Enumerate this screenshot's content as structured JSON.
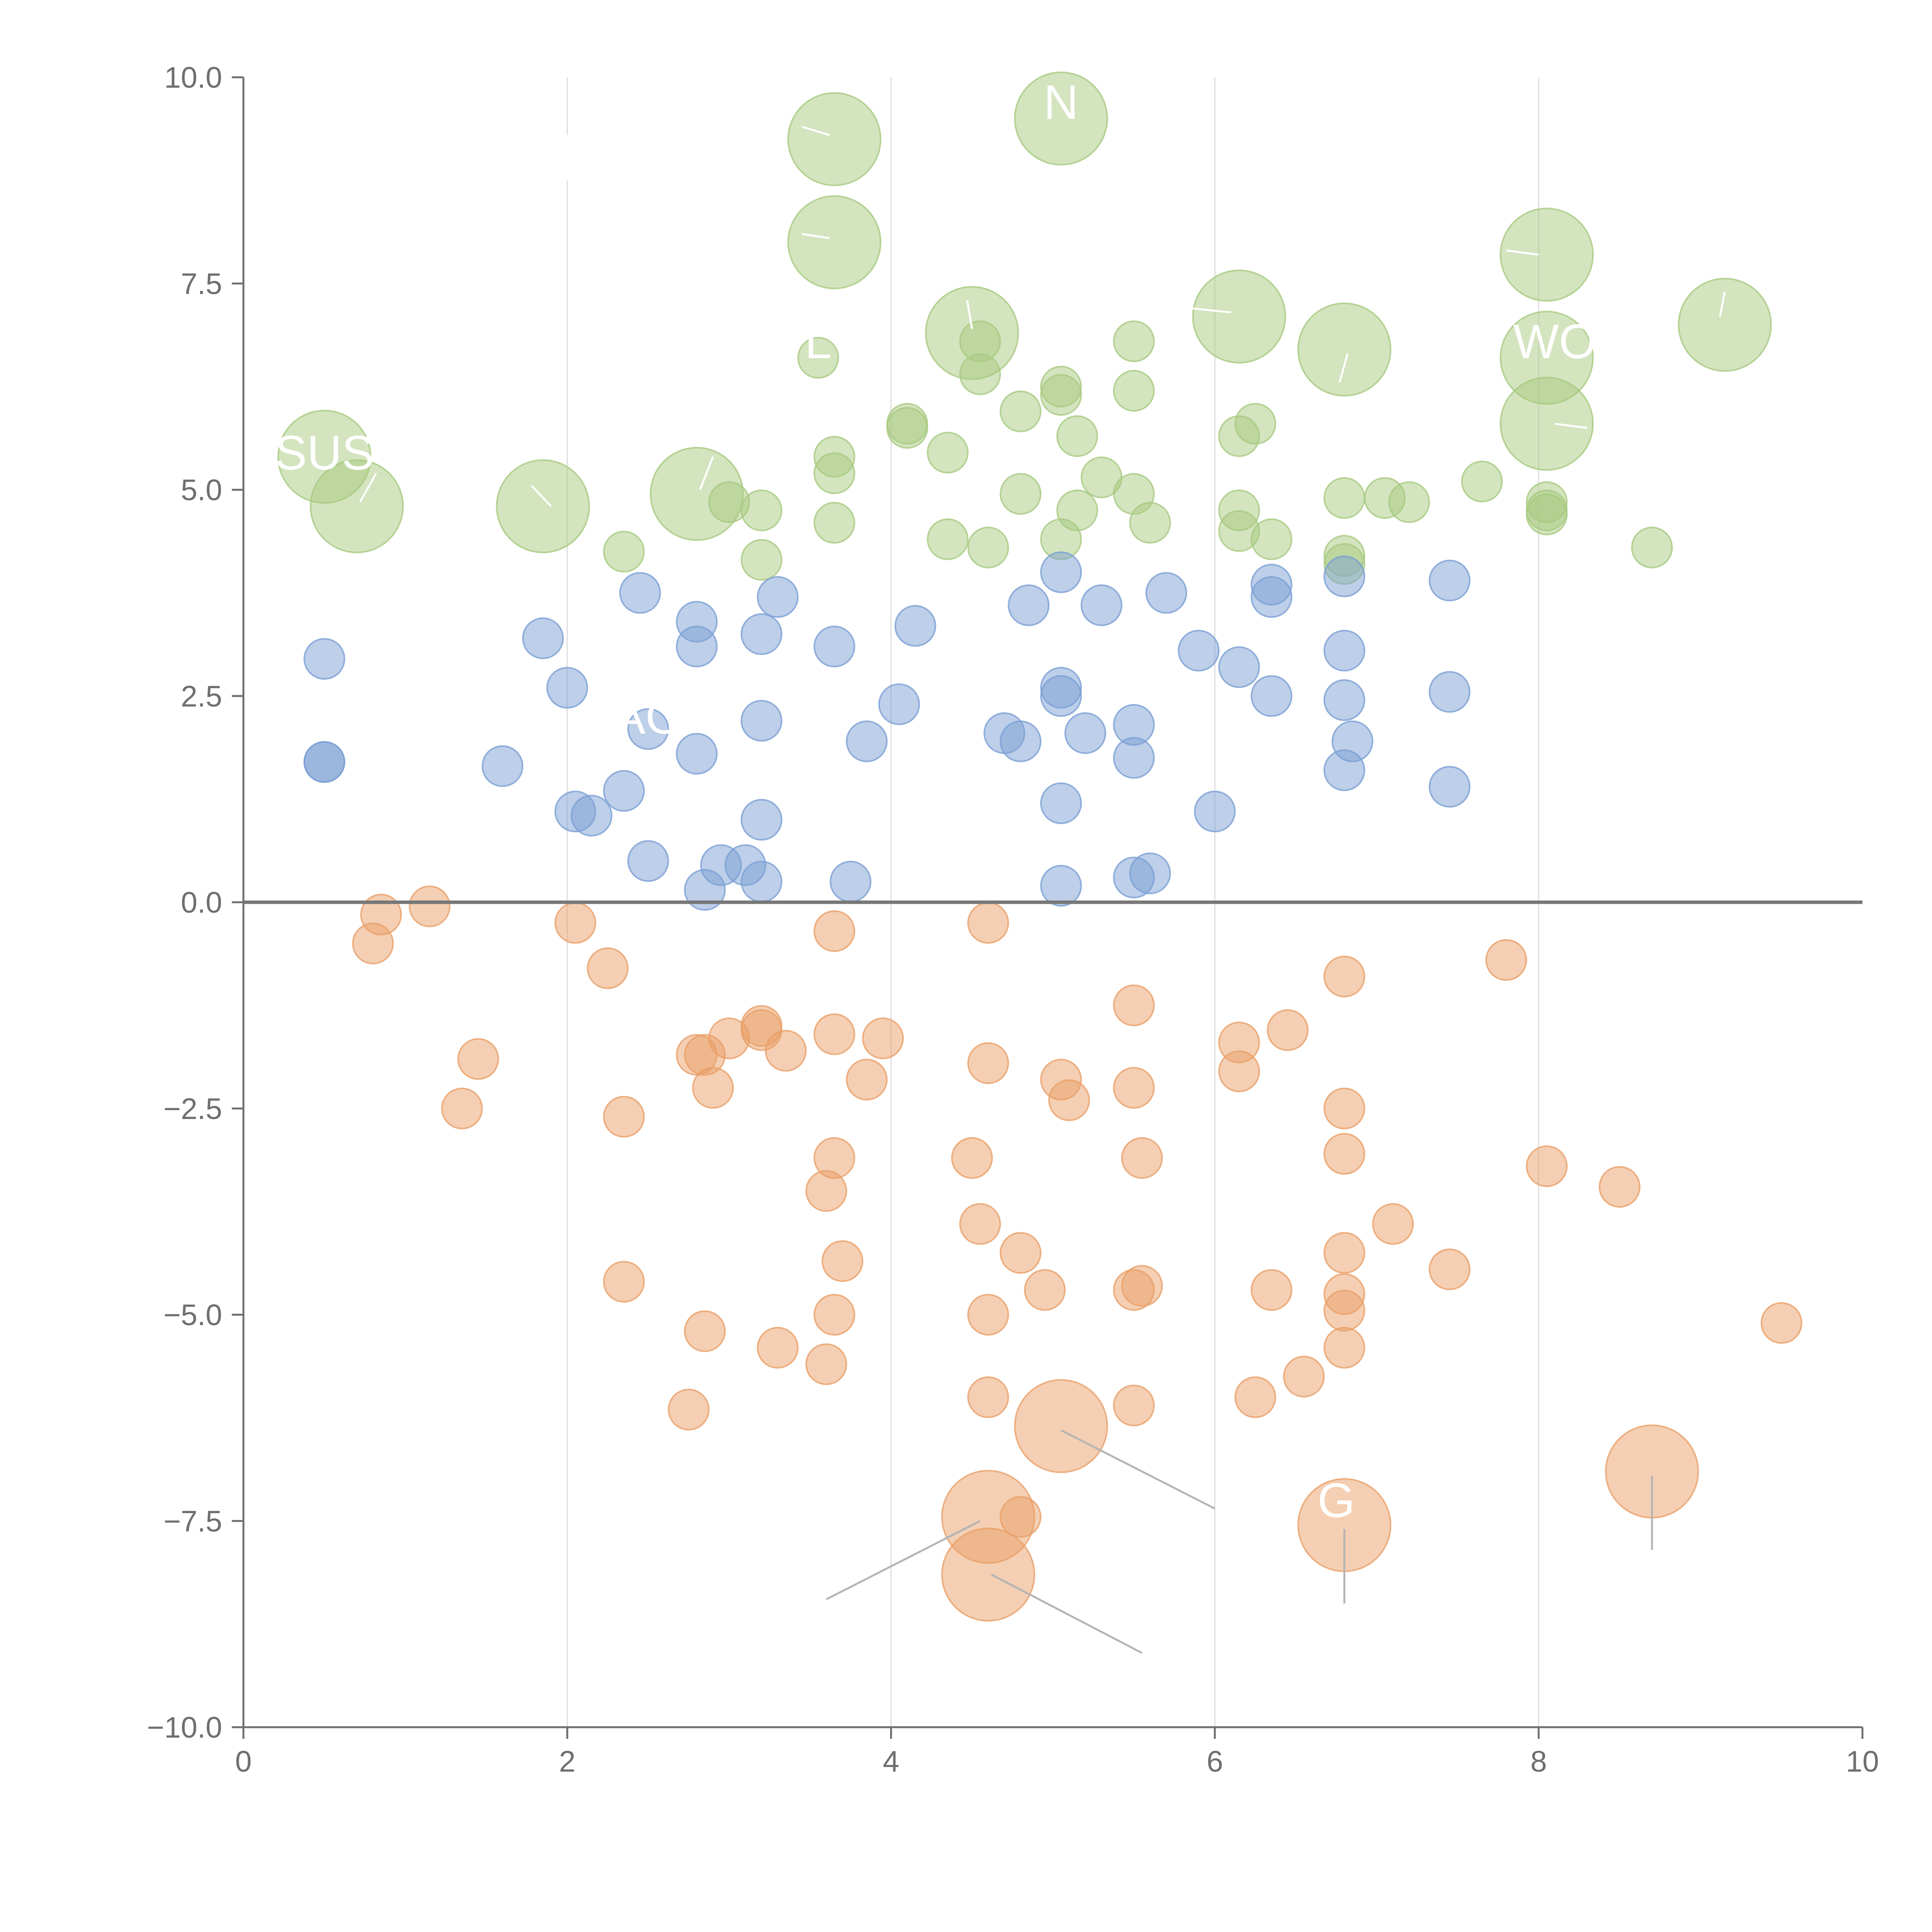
{
  "chart_data": {
    "type": "scatter",
    "title": "",
    "xlabel": "",
    "ylabel": "",
    "xlim": [
      0,
      10
    ],
    "ylim": [
      -10,
      10
    ],
    "x_ticks": [
      0,
      2,
      4,
      6,
      8,
      10
    ],
    "x_tick_labels": [
      "0",
      "2",
      "4",
      "6",
      "8",
      "10"
    ],
    "y_ticks": [
      10,
      7.5,
      5,
      2.5,
      0,
      -2.5,
      -5,
      -7.5,
      -10
    ],
    "y_tick_labels": [
      "10.0",
      "7.5",
      "5.0",
      "2.5",
      "0.0",
      "−2.5",
      "−5.0",
      "−7.5",
      "−10.0"
    ],
    "grid": "vertical",
    "reference_line_y": 0,
    "colors": {
      "top": "#a8c97f",
      "middle": "#7b9fd4",
      "bottom": "#ea9f68",
      "top_leader": "#ffffff",
      "bottom_leader": "#b4b4b4",
      "label": "#ffffff"
    },
    "size_units": {
      "small": 1,
      "large": 2.3
    },
    "series": [
      {
        "name": "top",
        "color_key": "top",
        "points": [
          [
            0.5,
            5.4,
            2.3
          ],
          [
            0.7,
            4.8,
            2.3
          ],
          [
            1.85,
            4.8,
            2.3
          ],
          [
            2.8,
            4.95,
            2.3
          ],
          [
            3.65,
            9.25,
            2.3
          ],
          [
            3.65,
            8.0,
            2.3
          ],
          [
            4.5,
            6.9,
            2.3
          ],
          [
            5.05,
            9.5,
            2.3
          ],
          [
            6.15,
            7.1,
            2.3
          ],
          [
            6.8,
            6.7,
            2.3
          ],
          [
            8.05,
            7.85,
            2.3
          ],
          [
            8.05,
            6.6,
            2.3
          ],
          [
            8.05,
            5.8,
            2.3
          ],
          [
            9.15,
            7.0,
            2.3
          ],
          [
            2.35,
            4.25,
            1
          ],
          [
            3.0,
            4.85,
            1
          ],
          [
            3.2,
            4.75,
            1
          ],
          [
            3.2,
            4.15,
            1
          ],
          [
            3.55,
            6.6,
            1
          ],
          [
            3.65,
            5.4,
            1
          ],
          [
            3.65,
            5.2,
            1
          ],
          [
            3.65,
            4.6,
            1
          ],
          [
            4.1,
            5.8,
            1
          ],
          [
            4.1,
            5.75,
            1
          ],
          [
            4.35,
            5.45,
            1
          ],
          [
            4.35,
            4.4,
            1
          ],
          [
            4.55,
            6.8,
            1
          ],
          [
            4.55,
            6.4,
            1
          ],
          [
            4.6,
            4.3,
            1
          ],
          [
            4.8,
            5.95,
            1
          ],
          [
            4.8,
            4.95,
            1
          ],
          [
            5.05,
            6.25,
            1
          ],
          [
            5.05,
            6.15,
            1
          ],
          [
            5.05,
            4.4,
            1
          ],
          [
            5.15,
            5.65,
            1
          ],
          [
            5.15,
            4.75,
            1
          ],
          [
            5.3,
            5.15,
            1
          ],
          [
            5.5,
            6.8,
            1
          ],
          [
            5.5,
            6.2,
            1
          ],
          [
            5.5,
            4.95,
            1
          ],
          [
            5.6,
            4.6,
            1
          ],
          [
            6.15,
            5.65,
            1
          ],
          [
            6.15,
            4.75,
            1
          ],
          [
            6.15,
            4.5,
            1
          ],
          [
            6.25,
            5.8,
            1
          ],
          [
            6.35,
            4.4,
            1
          ],
          [
            6.8,
            4.9,
            1
          ],
          [
            6.8,
            4.2,
            1
          ],
          [
            6.8,
            4.1,
            1
          ],
          [
            7.05,
            4.9,
            1
          ],
          [
            7.2,
            4.85,
            1
          ],
          [
            7.65,
            5.1,
            1
          ],
          [
            8.05,
            4.85,
            1
          ],
          [
            8.05,
            4.75,
            1
          ],
          [
            8.05,
            4.7,
            1
          ],
          [
            8.7,
            4.3,
            1
          ]
        ]
      },
      {
        "name": "middle",
        "color_key": "middle",
        "points": [
          [
            0.5,
            2.95,
            1
          ],
          [
            0.5,
            1.7,
            1
          ],
          [
            0.5,
            1.7,
            1
          ],
          [
            1.6,
            1.65,
            1
          ],
          [
            1.85,
            3.2,
            1
          ],
          [
            2.0,
            2.6,
            1
          ],
          [
            2.05,
            1.1,
            1
          ],
          [
            2.15,
            1.05,
            1
          ],
          [
            2.35,
            1.35,
            1
          ],
          [
            2.45,
            3.75,
            1
          ],
          [
            2.5,
            2.1,
            1
          ],
          [
            2.5,
            0.5,
            1
          ],
          [
            2.8,
            3.4,
            1
          ],
          [
            2.8,
            3.1,
            1
          ],
          [
            2.8,
            1.8,
            1
          ],
          [
            2.85,
            0.15,
            1
          ],
          [
            2.95,
            0.45,
            1
          ],
          [
            3.1,
            0.45,
            1
          ],
          [
            3.2,
            3.25,
            1
          ],
          [
            3.2,
            2.2,
            1
          ],
          [
            3.2,
            1.0,
            1
          ],
          [
            3.2,
            0.25,
            1
          ],
          [
            3.3,
            3.7,
            1
          ],
          [
            3.65,
            3.1,
            1
          ],
          [
            3.75,
            0.25,
            1
          ],
          [
            3.85,
            1.95,
            1
          ],
          [
            4.05,
            2.4,
            1
          ],
          [
            4.15,
            3.35,
            1
          ],
          [
            4.7,
            2.05,
            1
          ],
          [
            4.8,
            1.95,
            1
          ],
          [
            4.85,
            3.6,
            1
          ],
          [
            5.05,
            4.0,
            1
          ],
          [
            5.05,
            2.6,
            1
          ],
          [
            5.05,
            2.5,
            1
          ],
          [
            5.05,
            1.2,
            1
          ],
          [
            5.05,
            0.2,
            1
          ],
          [
            5.2,
            2.05,
            1
          ],
          [
            5.3,
            3.6,
            1
          ],
          [
            5.5,
            2.15,
            1
          ],
          [
            5.5,
            1.75,
            1
          ],
          [
            5.5,
            0.3,
            1
          ],
          [
            5.6,
            0.35,
            1
          ],
          [
            5.7,
            3.75,
            1
          ],
          [
            5.9,
            3.05,
            1
          ],
          [
            6.0,
            1.1,
            1
          ],
          [
            6.15,
            2.85,
            1
          ],
          [
            6.35,
            3.85,
            1
          ],
          [
            6.35,
            3.7,
            1
          ],
          [
            6.35,
            2.5,
            1
          ],
          [
            6.8,
            3.95,
            1
          ],
          [
            6.8,
            3.05,
            1
          ],
          [
            6.8,
            2.45,
            1
          ],
          [
            6.8,
            1.6,
            1
          ],
          [
            6.85,
            1.95,
            1
          ],
          [
            7.45,
            3.9,
            1
          ],
          [
            7.45,
            2.55,
            1
          ],
          [
            7.45,
            1.4,
            1
          ]
        ]
      },
      {
        "name": "bottom",
        "color_key": "bottom",
        "points": [
          [
            0.8,
            -0.5,
            1
          ],
          [
            0.85,
            -0.15,
            1
          ],
          [
            1.15,
            -0.05,
            1
          ],
          [
            1.35,
            -2.5,
            1
          ],
          [
            1.45,
            -1.9,
            1
          ],
          [
            2.05,
            -0.25,
            1
          ],
          [
            2.25,
            -0.8,
            1
          ],
          [
            2.35,
            -2.6,
            1
          ],
          [
            2.35,
            -4.6,
            1
          ],
          [
            2.75,
            -6.15,
            1
          ],
          [
            2.8,
            -1.85,
            1
          ],
          [
            2.85,
            -1.85,
            1
          ],
          [
            2.85,
            -5.2,
            1
          ],
          [
            2.9,
            -2.25,
            1
          ],
          [
            3.0,
            -1.65,
            1
          ],
          [
            3.2,
            -1.55,
            1
          ],
          [
            3.2,
            -1.5,
            1
          ],
          [
            3.3,
            -5.4,
            1
          ],
          [
            3.35,
            -1.8,
            1
          ],
          [
            3.6,
            -3.5,
            1
          ],
          [
            3.6,
            -5.6,
            1
          ],
          [
            3.65,
            -0.35,
            1
          ],
          [
            3.65,
            -1.6,
            1
          ],
          [
            3.65,
            -3.1,
            1
          ],
          [
            3.65,
            -5.0,
            1
          ],
          [
            3.7,
            -4.35,
            1
          ],
          [
            3.85,
            -2.15,
            1
          ],
          [
            3.95,
            -1.65,
            1
          ],
          [
            4.5,
            -3.1,
            1
          ],
          [
            4.55,
            -3.9,
            1
          ],
          [
            4.6,
            -0.25,
            1
          ],
          [
            4.6,
            -1.95,
            1
          ],
          [
            4.6,
            -5.0,
            1
          ],
          [
            4.6,
            -6.0,
            1
          ],
          [
            4.8,
            -4.25,
            1
          ],
          [
            4.8,
            -7.45,
            1
          ],
          [
            4.95,
            -4.7,
            1
          ],
          [
            5.05,
            -2.15,
            1
          ],
          [
            5.1,
            -2.4,
            1
          ],
          [
            5.5,
            -1.25,
            1
          ],
          [
            5.5,
            -2.25,
            1
          ],
          [
            5.5,
            -4.7,
            1
          ],
          [
            5.5,
            -6.1,
            1
          ],
          [
            5.55,
            -4.65,
            1
          ],
          [
            5.55,
            -3.1,
            1
          ],
          [
            6.15,
            -1.7,
            1
          ],
          [
            6.15,
            -2.05,
            1
          ],
          [
            6.25,
            -6.0,
            1
          ],
          [
            6.35,
            -4.7,
            1
          ],
          [
            6.45,
            -1.55,
            1
          ],
          [
            6.55,
            -5.75,
            1
          ],
          [
            6.8,
            -0.9,
            1
          ],
          [
            6.8,
            -2.5,
            1
          ],
          [
            6.8,
            -3.05,
            1
          ],
          [
            6.8,
            -4.25,
            1
          ],
          [
            6.8,
            -4.75,
            1
          ],
          [
            6.8,
            -4.95,
            1
          ],
          [
            6.8,
            -5.4,
            1
          ],
          [
            7.1,
            -3.9,
            1
          ],
          [
            7.45,
            -4.45,
            1
          ],
          [
            7.8,
            -0.7,
            1
          ],
          [
            8.05,
            -3.2,
            1
          ],
          [
            8.5,
            -3.45,
            1
          ],
          [
            9.5,
            -5.1,
            1
          ],
          [
            5.05,
            -6.35,
            2.3
          ],
          [
            4.6,
            -7.45,
            2.3
          ],
          [
            4.6,
            -8.15,
            2.3
          ],
          [
            6.8,
            -7.55,
            2.3
          ],
          [
            8.7,
            -6.9,
            2.3
          ]
        ]
      }
    ],
    "labels": [
      {
        "text": "SUS",
        "x": 0.5,
        "y": 5.4
      },
      {
        "text": "WO",
        "x": 8.1,
        "y": 6.75
      },
      {
        "text": "N",
        "x": 5.05,
        "y": 9.65
      },
      {
        "text": "L",
        "x": 3.55,
        "y": 6.75
      },
      {
        "text": "AO",
        "x": 2.5,
        "y": 2.2
      },
      {
        "text": "G",
        "x": 6.75,
        "y": -7.3
      }
    ],
    "leader_lines": [
      {
        "group": "top",
        "x1": 0.72,
        "y1": 4.85,
        "x2": 0.82,
        "y2": 5.2
      },
      {
        "group": "top",
        "x1": 1.9,
        "y1": 4.8,
        "x2": 1.78,
        "y2": 5.05
      },
      {
        "group": "top",
        "x1": 2.82,
        "y1": 5.0,
        "x2": 2.9,
        "y2": 5.4
      },
      {
        "group": "top",
        "x1": 3.62,
        "y1": 9.3,
        "x2": 3.45,
        "y2": 9.4
      },
      {
        "group": "top",
        "x1": 3.62,
        "y1": 8.05,
        "x2": 3.45,
        "y2": 8.1
      },
      {
        "group": "top",
        "x1": 4.5,
        "y1": 6.95,
        "x2": 4.47,
        "y2": 7.3
      },
      {
        "group": "top",
        "x1": 6.1,
        "y1": 7.15,
        "x2": 5.85,
        "y2": 7.2
      },
      {
        "group": "top",
        "x1": 6.82,
        "y1": 6.65,
        "x2": 6.77,
        "y2": 6.3
      },
      {
        "group": "top",
        "x1": 8.0,
        "y1": 7.85,
        "x2": 7.8,
        "y2": 7.9
      },
      {
        "group": "top",
        "x1": 8.1,
        "y1": 5.8,
        "x2": 8.3,
        "y2": 5.75
      },
      {
        "group": "top",
        "x1": 9.12,
        "y1": 7.1,
        "x2": 9.15,
        "y2": 7.4
      },
      {
        "group": "top",
        "x1": 2.0,
        "y1": 9.3,
        "x2": 2.0,
        "y2": 8.75
      },
      {
        "group": "bottom",
        "x1": 5.05,
        "y1": -6.4,
        "x2": 6.0,
        "y2": -7.35
      },
      {
        "group": "bottom",
        "x1": 4.55,
        "y1": -7.5,
        "x2": 3.6,
        "y2": -8.45
      },
      {
        "group": "bottom",
        "x1": 4.62,
        "y1": -8.15,
        "x2": 5.55,
        "y2": -9.1
      },
      {
        "group": "bottom",
        "x1": 6.8,
        "y1": -7.6,
        "x2": 6.8,
        "y2": -8.5
      },
      {
        "group": "bottom",
        "x1": 8.7,
        "y1": -6.95,
        "x2": 8.7,
        "y2": -7.85
      }
    ]
  }
}
